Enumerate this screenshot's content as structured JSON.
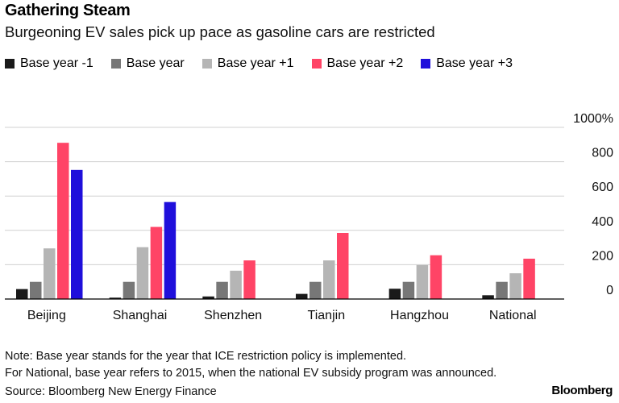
{
  "title": "Gathering Steam",
  "subtitle": "Burgeoning EV sales pick up pace as gasoline cars are restricted",
  "chart_data": {
    "type": "bar",
    "categories": [
      "Beijing",
      "Shanghai",
      "Shenzhen",
      "Tianjin",
      "Hangzhou",
      "National"
    ],
    "series": [
      {
        "name": "Base year -1",
        "color": "#1a1a1a",
        "values": [
          58,
          8,
          15,
          30,
          60,
          22
        ]
      },
      {
        "name": "Base year",
        "color": "#777777",
        "values": [
          100,
          100,
          100,
          100,
          100,
          100
        ]
      },
      {
        "name": "Base year +1",
        "color": "#b5b5b5",
        "values": [
          295,
          302,
          165,
          225,
          198,
          150
        ]
      },
      {
        "name": "Base year +2",
        "color": "#ff4466",
        "values": [
          910,
          420,
          225,
          385,
          255,
          235
        ]
      },
      {
        "name": "Base year +3",
        "color": "#1f0fdb",
        "values": [
          752,
          565,
          null,
          null,
          null,
          null
        ]
      }
    ],
    "y_ticks": [
      "0",
      "200",
      "400",
      "600",
      "800",
      "1000%"
    ],
    "ylim": [
      0,
      1000
    ],
    "y_unit": "%",
    "grid": true,
    "legend_position": "top-left",
    "axis_position": "right"
  },
  "footer": {
    "note_line1": "Note: Base year stands for the year that ICE restriction policy is implemented.",
    "note_line2": "For National, base year refers to 2015, when the national EV subsidy program was announced.",
    "source": "Source: Bloomberg New Energy Finance",
    "brand": "Bloomberg"
  }
}
